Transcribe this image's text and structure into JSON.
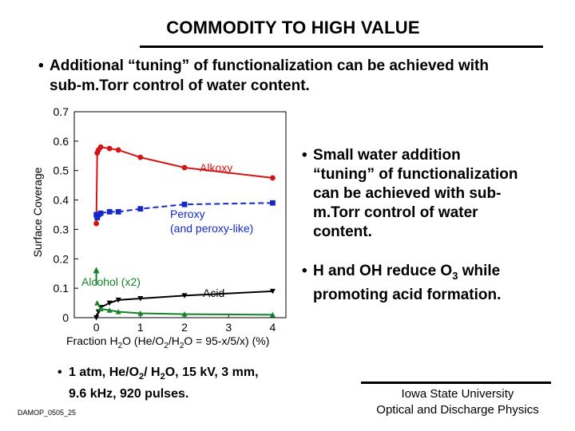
{
  "slide": {
    "title": "COMMODITY TO HIGH VALUE",
    "bullet_main_line1": "Additional “tuning” of functionalization can be achieved with",
    "bullet_main_line2": "sub-m.Torr control of water content.",
    "right_bullets": [
      {
        "lines": [
          "Small water addition",
          "“tuning” of functionalization",
          "can be achieved with sub-",
          "m.Torr control of water",
          "content."
        ]
      },
      {
        "line1_pre": "H and OH reduce O",
        "line1_sub": "3",
        "line1_post": " while",
        "line2": "promoting acid formation."
      }
    ],
    "conditions": {
      "p1": "1 atm, He/O",
      "s1": "2",
      "p2": "/ H",
      "s2": "2",
      "p3": "O, 15 kV, 3 mm,",
      "line2": "9.6 kHz, 920 pulses."
    },
    "footer_code": "DAMOP_0505_25",
    "affiliation_line1": "Iowa State University",
    "affiliation_line2": "Optical and Discharge Physics"
  },
  "colors": {
    "alkoxy": "#d21414",
    "peroxy": "#1428c8",
    "acid": "#000000",
    "alcohol": "#148228"
  },
  "chart_data": {
    "type": "line",
    "title": "",
    "ylabel": "Surface Coverage",
    "xlabel": {
      "t1": "Fraction H",
      "s1": "2",
      "t2": "O (He/O",
      "s2": "2",
      "t3": "/H",
      "s3": "2",
      "t4": "O = 95-x/5/x) (%)"
    },
    "xlim": [
      -0.5,
      4.3
    ],
    "ylim": [
      0,
      0.7
    ],
    "xticks": [
      0,
      1,
      2,
      3,
      4
    ],
    "yticks": [
      0,
      0.1,
      0.2,
      0.3,
      0.4,
      0.5,
      0.6,
      0.7
    ],
    "xtick_labels": [
      "0",
      "1",
      "2",
      "3",
      "4"
    ],
    "ytick_labels": [
      "0",
      "0.1",
      "0.2",
      "0.3",
      "0.4",
      "0.5",
      "0.6",
      "0.7"
    ],
    "series": [
      {
        "name": "Alkoxy",
        "color": "#d21414",
        "marker": "circle",
        "x": [
          0,
          0.02,
          0.05,
          0.1,
          0.3,
          0.5,
          1,
          2,
          4
        ],
        "y": [
          0.32,
          0.56,
          0.57,
          0.58,
          0.575,
          0.57,
          0.545,
          0.51,
          0.475
        ]
      },
      {
        "name": "Peroxy",
        "color": "#1428c8",
        "marker": "square",
        "x": [
          0,
          0.02,
          0.05,
          0.1,
          0.3,
          0.5,
          1,
          2,
          4
        ],
        "y": [
          0.35,
          0.34,
          0.35,
          0.355,
          0.36,
          0.36,
          0.37,
          0.385,
          0.39
        ]
      },
      {
        "name": "Acid",
        "color": "#000000",
        "marker": "triangle-down",
        "x": [
          0,
          0.05,
          0.1,
          0.3,
          0.5,
          1,
          2,
          4
        ],
        "y": [
          0,
          0.02,
          0.035,
          0.05,
          0.06,
          0.065,
          0.075,
          0.09
        ]
      },
      {
        "name": "Alcohol (x2)",
        "color": "#148228",
        "marker": "triangle-up",
        "x": [
          0.02,
          0.1,
          0.3,
          0.5,
          1,
          2,
          4
        ],
        "y": [
          0.05,
          0.03,
          0.025,
          0.02,
          0.015,
          0.012,
          0.01
        ]
      }
    ],
    "labels": {
      "alkoxy": "Alkoxy",
      "peroxy_1": "Peroxy",
      "peroxy_2": "(and peroxy-like)",
      "alcohol": "Alcohol (x2)",
      "acid": "Acid"
    },
    "annotation": {
      "alcohol_arrow_to": {
        "x": 0,
        "y": 0.17
      },
      "alcohol_arrow_from": {
        "x": 0,
        "y": 0.11
      }
    }
  }
}
